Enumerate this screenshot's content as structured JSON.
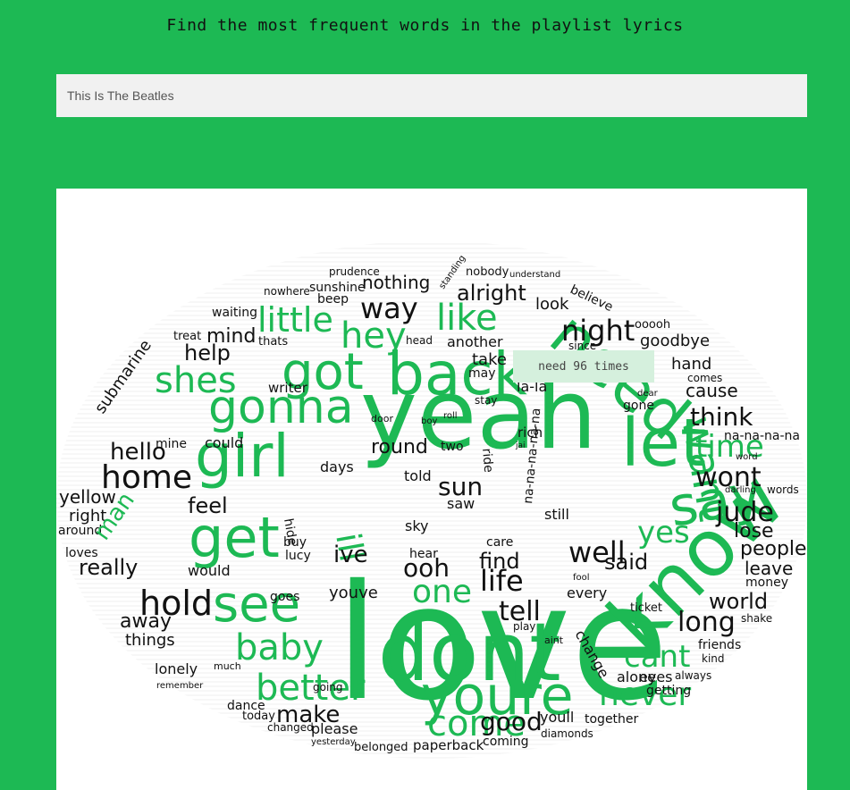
{
  "header": {
    "title": "Find the most frequent words in the playlist lyrics"
  },
  "search": {
    "value": "This Is The Beatles"
  },
  "tooltip": {
    "text": "need 96 times"
  },
  "colors": {
    "background": "#1db954",
    "green_word": "#1db954",
    "dark_word": "#111111"
  },
  "cloud_words": [
    "love",
    "yeah",
    "dont",
    "know",
    "youre",
    "got",
    "back",
    "girl",
    "get",
    "see",
    "gonna",
    "let",
    "say",
    "want",
    "need",
    "baby",
    "better",
    "come",
    "never",
    "cant",
    "hold",
    "home",
    "hey",
    "like",
    "little",
    "shes",
    "night",
    "way",
    "one",
    "time",
    "jude",
    "wont",
    "well",
    "tell",
    "life",
    "long",
    "think",
    "sun",
    "ill",
    "good",
    "make",
    "ive",
    "ooh",
    "find",
    "said",
    "yes",
    "feel",
    "hello",
    "help",
    "mind",
    "alright",
    "nothing",
    "look",
    "world",
    "people",
    "lose",
    "leave",
    "cause",
    "hand",
    "goodbye",
    "take",
    "round",
    "really",
    "away",
    "things",
    "lonely",
    "yellow",
    "right",
    "around",
    "loves",
    "would",
    "could",
    "mine",
    "man",
    "submarine",
    "another",
    "still",
    "every",
    "change",
    "alone",
    "eyes",
    "friends",
    "money",
    "youve",
    "goes",
    "please",
    "dance",
    "today",
    "belonged",
    "paperback",
    "coming",
    "youll",
    "together",
    "diamonds",
    "getting",
    "always",
    "kind",
    "shake",
    "ticket",
    "sky",
    "saw",
    "buy",
    "lucy",
    "hear",
    "care",
    "writer",
    "days",
    "told",
    "two",
    "rich",
    "la-la",
    "prudence",
    "sunshine",
    "beep",
    "nowhere",
    "waiting",
    "treat",
    "thats",
    "head",
    "since",
    "ooooh",
    "believe",
    "understand",
    "nobody",
    "standing",
    "hide",
    "na-na-na-na",
    "na-na-na-na-na",
    "words",
    "darling",
    "much",
    "remember",
    "changed",
    "yesterday",
    "going",
    "may",
    "gone",
    "comes",
    "dear",
    "word",
    "fool",
    "door",
    "boy",
    "roll",
    "jai",
    "ride",
    "stay",
    "play",
    "aint"
  ]
}
